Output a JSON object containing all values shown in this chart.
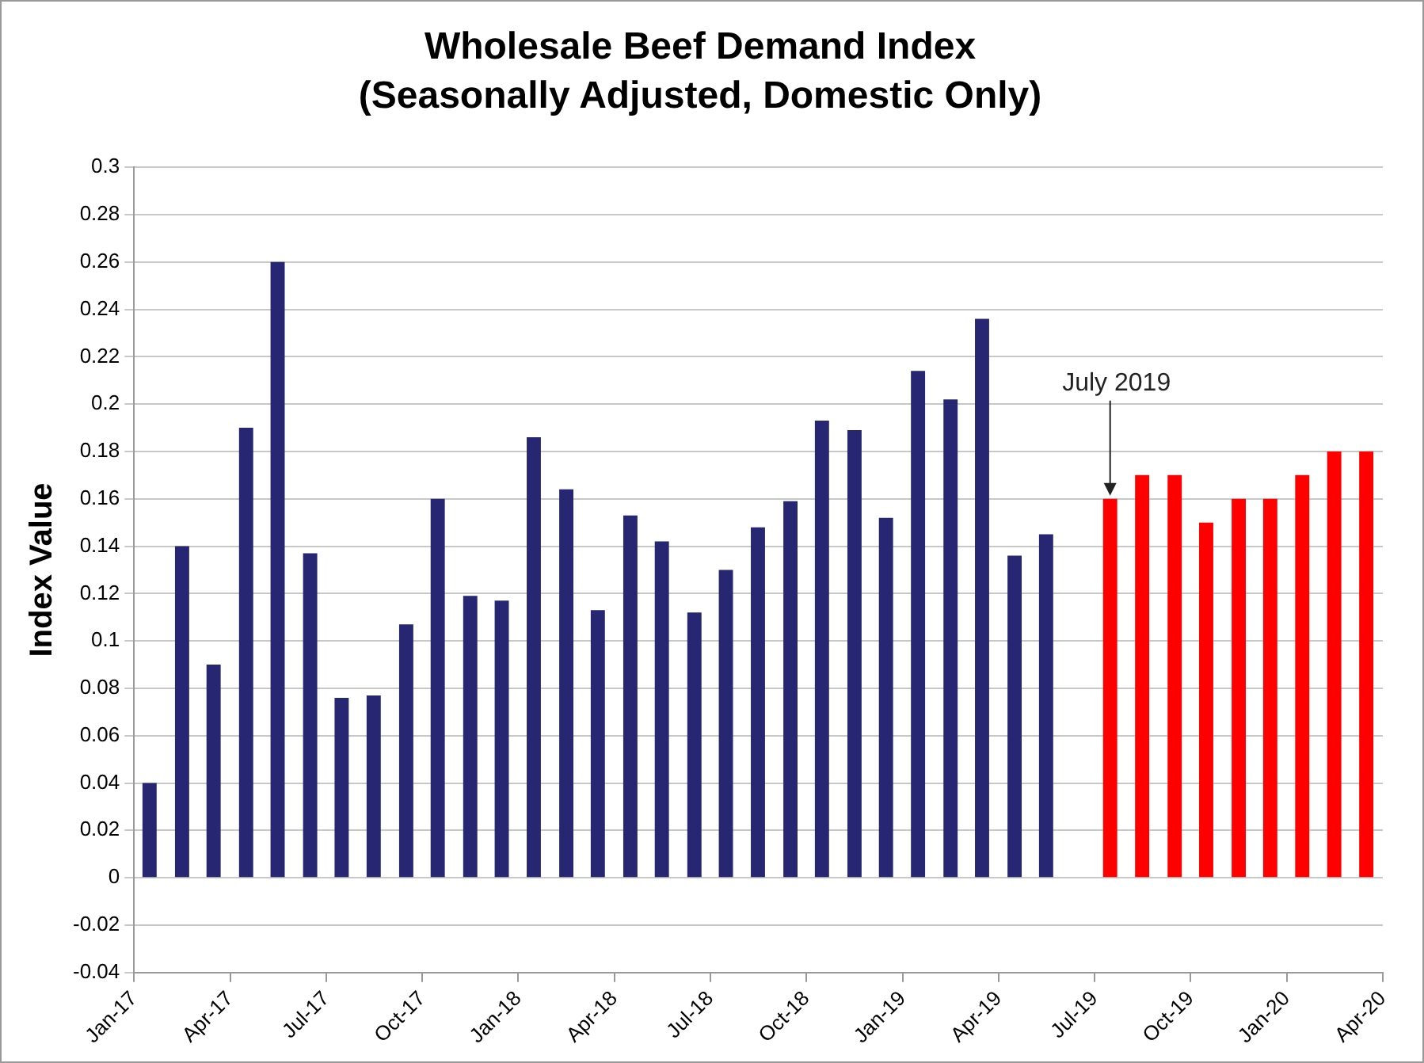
{
  "chart_data": {
    "type": "bar",
    "title": "Wholesale Beef Demand Index",
    "subtitle": "(Seasonally Adjusted, Domestic Only)",
    "ylabel": "Index Value",
    "x": [
      "2017-01-16",
      "2017-02-15",
      "2017-03-16",
      "2017-04-16",
      "2017-05-16",
      "2017-06-16",
      "2017-07-16",
      "2017-08-16",
      "2017-09-16",
      "2017-10-16",
      "2017-11-16",
      "2017-12-16",
      "2018-01-16",
      "2018-02-15",
      "2018-03-16",
      "2018-04-16",
      "2018-05-16",
      "2018-06-16",
      "2018-07-16",
      "2018-08-16",
      "2018-09-16",
      "2018-10-16",
      "2018-11-16",
      "2018-12-16",
      "2019-01-16",
      "2019-02-15",
      "2019-03-16",
      "2019-04-16",
      "2019-05-16",
      "2019-06-16",
      "2019-07-16",
      "2019-08-16",
      "2019-09-16",
      "2019-10-16",
      "2019-11-16",
      "2019-12-16",
      "2020-01-16",
      "2020-02-15",
      "2020-03-16"
    ],
    "series": [
      {
        "color": "#ff0000",
        "values": [
          null,
          null,
          null,
          null,
          null,
          null,
          null,
          null,
          null,
          null,
          null,
          null,
          null,
          null,
          null,
          null,
          null,
          null,
          null,
          null,
          null,
          null,
          null,
          null,
          null,
          null,
          null,
          null,
          null,
          null,
          0.16,
          0.17,
          0.17,
          0.15,
          0.16,
          0.16,
          0.17,
          0.18,
          0.18
        ]
      },
      {
        "color": "#262673",
        "values": [
          0.04,
          0.14,
          0.09,
          0.19,
          0.26,
          0.137,
          0.076,
          0.077,
          0.107,
          0.16,
          0.119,
          0.117,
          0.186,
          0.164,
          0.113,
          0.153,
          0.142,
          0.112,
          0.13,
          0.148,
          0.159,
          0.193,
          0.189,
          0.152,
          0.214,
          0.202,
          0.236,
          0.136,
          0.145,
          null,
          null,
          null,
          null,
          null,
          null,
          null,
          null,
          null,
          null
        ]
      }
    ],
    "xlim": [
      "2017-01-01",
      "2020-04-01"
    ],
    "xticks": [
      {
        "value": "2017-01-01",
        "label": "Jan-17"
      },
      {
        "value": "2017-04-01",
        "label": "Apr-17"
      },
      {
        "value": "2017-07-01",
        "label": "Jul-17"
      },
      {
        "value": "2017-10-01",
        "label": "Oct-17"
      },
      {
        "value": "2018-01-01",
        "label": "Jan-18"
      },
      {
        "value": "2018-04-01",
        "label": "Apr-18"
      },
      {
        "value": "2018-07-01",
        "label": "Jul-18"
      },
      {
        "value": "2018-10-01",
        "label": "Oct-18"
      },
      {
        "value": "2019-01-01",
        "label": "Jan-19"
      },
      {
        "value": "2019-04-01",
        "label": "Apr-19"
      },
      {
        "value": "2019-07-01",
        "label": "Jul-19"
      },
      {
        "value": "2019-10-01",
        "label": "Oct-19"
      },
      {
        "value": "2020-01-01",
        "label": "Jan-20"
      },
      {
        "value": "2020-04-01",
        "label": "Apr-20"
      }
    ],
    "ylim": [
      -0.04,
      0.3
    ],
    "yticks": [
      -0.04,
      -0.02,
      0,
      0.02,
      0.04,
      0.06,
      0.08,
      0.1,
      0.12,
      0.14,
      0.16,
      0.18,
      0.2,
      0.22,
      0.24,
      0.26,
      0.28,
      0.3
    ],
    "annotations": [
      {
        "text": "July 2019",
        "x": "2019-07-16",
        "y": 0.16
      }
    ],
    "grid": "y",
    "legend": false
  }
}
